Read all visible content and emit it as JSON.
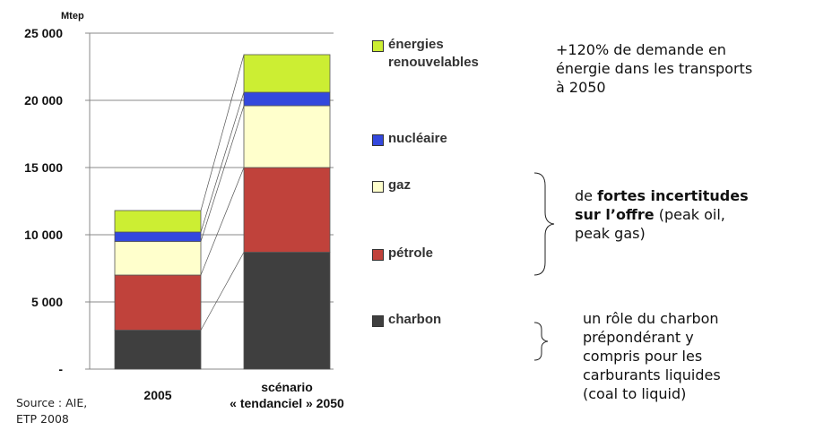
{
  "chart_data": {
    "type": "stacked_bar",
    "unit_label": "Mtep",
    "categories": [
      "2005",
      "scénario\n« tendanciel »  2050"
    ],
    "series": [
      {
        "name": "charbon",
        "color": "#3f3f3f",
        "values": [
          2900,
          8700
        ]
      },
      {
        "name": "pétrole",
        "color": "#c0423b",
        "values": [
          4100,
          6300
        ]
      },
      {
        "name": "gaz",
        "color": "#ffffcc",
        "values": [
          2500,
          4600
        ]
      },
      {
        "name": "nucléaire",
        "color": "#3348dd",
        "values": [
          700,
          1000
        ]
      },
      {
        "name": "énergies\nrenouvelables",
        "color": "#ccee33",
        "values": [
          1600,
          2800
        ]
      }
    ],
    "ylim": [
      0,
      25000
    ],
    "yticks": [
      {
        "value": 0,
        "label": "-"
      },
      {
        "value": 5000,
        "label": "5 000"
      },
      {
        "value": 10000,
        "label": "10 000"
      },
      {
        "value": 15000,
        "label": "15 000"
      },
      {
        "value": 20000,
        "label": "20 000"
      },
      {
        "value": 25000,
        "label": "25 000"
      }
    ],
    "grid": true,
    "annotations": [
      {
        "parts": [
          {
            "text": "+120% de demande en\nénergie dans les transports\nà 2050",
            "bold": false
          }
        ]
      },
      {
        "parts": [
          {
            "text": "de ",
            "bold": false
          },
          {
            "text": "fortes incertitudes\nsur l’offre",
            "bold": true
          },
          {
            "text": " (peak oil,\npeak gas)",
            "bold": false
          }
        ]
      },
      {
        "parts": [
          {
            "text": "un rôle du charbon\nprépondérant y\ncompris pour les\ncarburants liquides\n(coal to liquid)",
            "bold": false
          }
        ]
      }
    ],
    "source": "Source : AIE,\nETP 2008"
  }
}
